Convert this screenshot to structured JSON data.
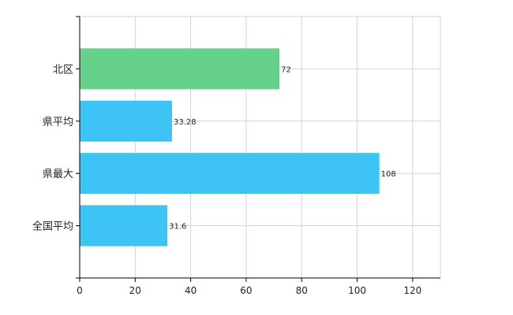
{
  "chart_data": {
    "type": "bar",
    "orientation": "horizontal",
    "categories": [
      "北区",
      "県平均",
      "県最大",
      "全国平均"
    ],
    "values": [
      72,
      33.28,
      108,
      31.6
    ],
    "value_labels": [
      "72",
      "33.28",
      "108",
      "31.6"
    ],
    "bar_colors": [
      "#66d18a",
      "#3ec3f5",
      "#3ec3f5",
      "#3ec3f5"
    ],
    "xlim": [
      0,
      130
    ],
    "xticks": [
      0,
      20,
      40,
      60,
      80,
      100,
      120
    ],
    "grid": true,
    "title": "",
    "xlabel": "",
    "ylabel": ""
  }
}
